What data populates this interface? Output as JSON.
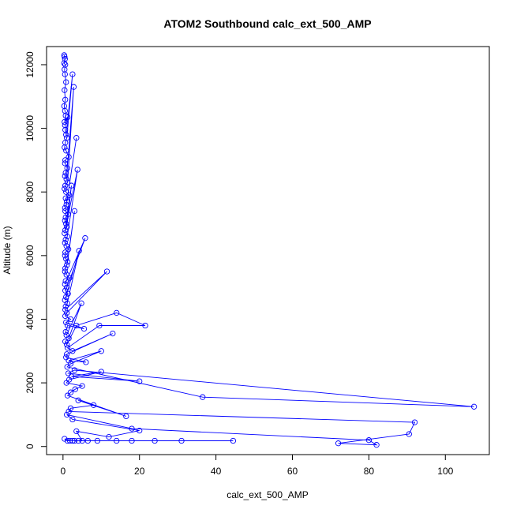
{
  "chart_data": {
    "type": "line",
    "title": "ATOM2 Southbound calc_ext_500_AMP",
    "xlabel": "calc_ext_500_AMP",
    "ylabel": "Altitude (m)",
    "xlim": [
      -4.3,
      111.5
    ],
    "ylim": [
      -255,
      12570
    ],
    "x_ticks": [
      0,
      20,
      40,
      60,
      80,
      100
    ],
    "y_ticks": [
      0,
      2000,
      4000,
      6000,
      8000,
      10000,
      12000
    ],
    "grid": false,
    "color": "#0000ff",
    "series": [
      {
        "x": [
          0.3,
          0.4,
          0.5,
          0.3,
          0.6,
          0.4,
          0.5,
          0.8,
          0.4,
          0.6,
          0.3,
          0.5,
          0.7,
          0.4,
          1.2,
          0.5,
          0.6,
          0.8,
          2.5,
          1.0,
          0.6,
          0.4,
          0.8,
          1.5,
          0.6,
          0.5,
          1.1,
          0.7,
          0.5,
          0.9,
          2.8,
          1.2,
          0.6,
          0.4,
          0.8,
          1.6,
          0.7,
          1.0,
          3.5,
          0.9,
          0.5,
          0.6,
          1.3,
          0.7,
          0.5,
          0.8,
          2.2,
          1.0,
          0.6,
          0.4,
          3.8,
          1.1,
          0.7,
          0.5,
          0.9,
          1.4,
          0.6,
          0.5,
          0.8,
          1.2,
          3.0,
          1.0,
          0.6,
          0.5,
          0.9,
          1.7,
          0.7,
          0.5,
          5.8,
          1.0,
          0.6,
          1.3,
          0.8,
          0.5,
          4.2,
          1.1,
          0.7,
          0.6,
          11.5,
          1.0,
          0.6,
          2.0,
          0.8,
          5.5,
          1.2,
          0.7,
          0.9,
          4.8,
          1.5,
          0.6,
          1.0,
          3.5,
          14.0,
          21.5,
          9.5,
          1.2,
          2.5,
          13.0,
          1.0,
          0.8,
          6.0,
          1.5,
          10.0,
          2.0,
          1.1,
          36.5,
          107.5,
          3.0,
          1.4,
          20.0,
          2.2,
          10.0,
          1.6,
          0.9,
          5.0,
          3.2,
          2.0,
          1.2,
          16.5,
          4.0,
          8.0,
          2.0,
          1.5,
          92.0,
          90.5,
          72.0,
          82.0,
          80.0,
          18.0,
          1.0,
          2.5,
          20.0,
          12.0,
          3.5,
          5.0,
          44.5,
          31.0,
          24.0,
          18.0,
          14.0,
          9.0,
          6.5,
          4.0,
          2.5,
          1.8,
          0.4,
          1.2,
          3.0
        ],
        "y": [
          12300,
          12250,
          12180,
          12050,
          12000,
          11850,
          11700,
          11450,
          11200,
          10900,
          10700,
          10550,
          10400,
          10200,
          10350,
          10100,
          9950,
          9800,
          11700,
          9700,
          9550,
          9400,
          9300,
          9100,
          9000,
          8900,
          8750,
          8600,
          8500,
          8400,
          11300,
          8300,
          8200,
          8100,
          8000,
          7900,
          7800,
          7700,
          9700,
          7600,
          7500,
          7400,
          7300,
          7200,
          7100,
          7000,
          8200,
          6900,
          6800,
          6700,
          8700,
          6600,
          6500,
          6400,
          6300,
          6200,
          6100,
          6000,
          5900,
          5800,
          7400,
          5700,
          5600,
          5500,
          5400,
          5300,
          5200,
          5100,
          6550,
          5000,
          4900,
          4800,
          4700,
          4600,
          6150,
          4500,
          4400,
          4300,
          5500,
          4200,
          4100,
          4000,
          3900,
          3700,
          3800,
          3600,
          3500,
          4500,
          3400,
          3300,
          3200,
          3800,
          4200,
          3800,
          3800,
          3100,
          3000,
          3550,
          2900,
          2800,
          2650,
          2700,
          3000,
          2600,
          2500,
          1550,
          1250,
          2400,
          2300,
          2050,
          2200,
          2350,
          2100,
          2000,
          1900,
          1800,
          1700,
          1600,
          950,
          1450,
          1300,
          1200,
          1100,
          760,
          390,
          100,
          50,
          200,
          560,
          1000,
          850,
          500,
          300,
          480,
          180,
          180,
          180,
          180,
          180,
          180,
          180,
          180,
          180,
          180,
          180,
          240,
          180,
          180
        ]
      }
    ]
  }
}
